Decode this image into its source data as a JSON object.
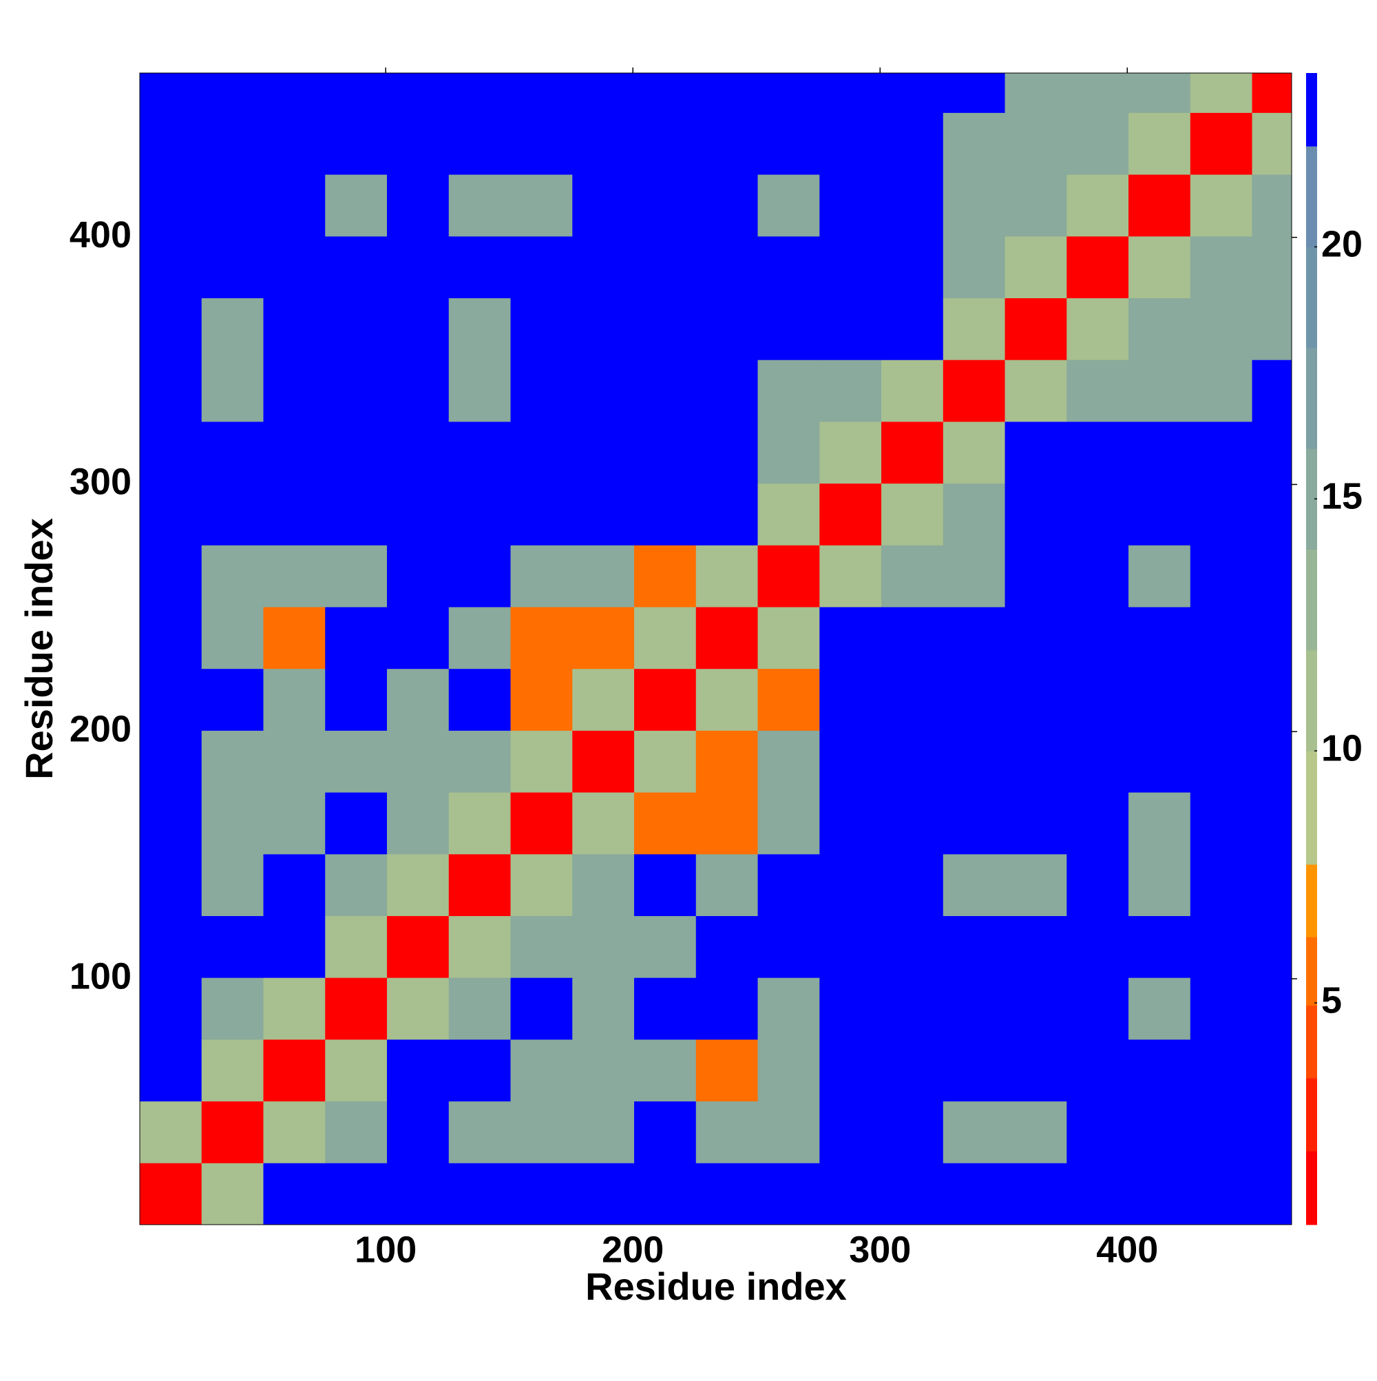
{
  "chart_data": {
    "type": "heatmap",
    "x_label": "Residue index",
    "y_label": "Residue index",
    "xlim": [
      0.5,
      466.5
    ],
    "ylim": [
      0.5,
      466.5
    ],
    "xticks": [
      100,
      200,
      300,
      400
    ],
    "yticks": [
      100,
      200,
      300,
      400
    ],
    "bins": [
      0.5,
      25.5,
      50.5,
      75.5,
      100.5,
      125.5,
      150.5,
      175.5,
      200.5,
      225.5,
      250.5,
      275.5,
      300.5,
      325.5,
      350.5,
      375.5,
      400.5,
      425.5,
      450.5,
      466.5
    ],
    "z": [
      [
        1.5,
        11,
        23,
        23,
        23,
        23,
        23,
        23,
        23,
        23,
        23,
        23,
        23,
        23,
        23,
        23,
        23,
        23,
        23
      ],
      [
        11,
        1.5,
        11,
        14,
        23,
        14,
        14,
        14,
        23,
        14,
        14,
        23,
        23,
        14,
        14,
        23,
        23,
        23,
        23
      ],
      [
        23,
        11,
        1.5,
        11,
        23,
        23,
        14,
        14,
        14,
        6,
        14,
        23,
        23,
        23,
        23,
        23,
        23,
        23,
        23
      ],
      [
        23,
        14,
        11,
        1.5,
        11,
        14,
        23,
        14,
        23,
        23,
        14,
        23,
        23,
        23,
        23,
        23,
        14,
        23,
        23
      ],
      [
        23,
        23,
        23,
        11,
        1.5,
        11,
        14,
        14,
        14,
        23,
        23,
        23,
        23,
        23,
        23,
        23,
        23,
        23,
        23
      ],
      [
        23,
        14,
        23,
        14,
        11,
        1.5,
        11,
        14,
        23,
        14,
        23,
        23,
        23,
        14,
        14,
        23,
        14,
        23,
        23
      ],
      [
        23,
        14,
        14,
        23,
        14,
        11,
        1.5,
        11,
        6,
        6,
        14,
        23,
        23,
        23,
        23,
        23,
        14,
        23,
        23
      ],
      [
        23,
        14,
        14,
        14,
        14,
        14,
        11,
        1.5,
        11,
        6,
        14,
        23,
        23,
        23,
        23,
        23,
        23,
        23,
        23
      ],
      [
        23,
        23,
        14,
        23,
        14,
        23,
        6,
        11,
        1.5,
        11,
        6,
        23,
        23,
        23,
        23,
        23,
        23,
        23,
        23
      ],
      [
        23,
        14,
        6,
        23,
        23,
        14,
        6,
        6,
        11,
        1.5,
        11,
        23,
        23,
        23,
        23,
        23,
        23,
        23,
        23
      ],
      [
        23,
        14,
        14,
        14,
        23,
        23,
        14,
        14,
        6,
        11,
        1.5,
        11,
        14,
        14,
        23,
        23,
        14,
        23,
        23
      ],
      [
        23,
        23,
        23,
        23,
        23,
        23,
        23,
        23,
        23,
        23,
        11,
        1.5,
        11,
        14,
        23,
        23,
        23,
        23,
        23
      ],
      [
        23,
        23,
        23,
        23,
        23,
        23,
        23,
        23,
        23,
        23,
        14,
        11,
        1.5,
        11,
        23,
        23,
        23,
        23,
        23
      ],
      [
        23,
        14,
        23,
        23,
        23,
        14,
        23,
        23,
        23,
        23,
        14,
        14,
        11,
        1.5,
        11,
        14,
        14,
        14,
        23
      ],
      [
        23,
        14,
        23,
        23,
        23,
        14,
        23,
        23,
        23,
        23,
        23,
        23,
        23,
        11,
        1.5,
        11,
        14,
        14,
        14
      ],
      [
        23,
        23,
        23,
        23,
        23,
        23,
        23,
        23,
        23,
        23,
        23,
        23,
        23,
        14,
        11,
        1.5,
        11,
        14,
        14
      ],
      [
        23,
        23,
        23,
        14,
        23,
        14,
        14,
        23,
        23,
        23,
        14,
        23,
        23,
        14,
        14,
        11,
        1.5,
        11,
        14
      ],
      [
        23,
        23,
        23,
        23,
        23,
        23,
        23,
        23,
        23,
        23,
        23,
        23,
        23,
        14,
        14,
        14,
        11,
        1.5,
        11
      ],
      [
        23,
        23,
        23,
        23,
        23,
        23,
        23,
        23,
        23,
        23,
        23,
        23,
        23,
        23,
        14,
        14,
        14,
        11,
        1.5
      ]
    ],
    "colorbar": {
      "zlim": [
        0.6,
        23.45
      ],
      "ticks": [
        5,
        10,
        15,
        20
      ],
      "levels": [
        0.6,
        2.06,
        3.51,
        4.95,
        6.31,
        7.75,
        10,
        12,
        14,
        16,
        18,
        20,
        22,
        23.45
      ],
      "colors": [
        "#ff0000",
        "#ff2200",
        "#ff4a00",
        "#ff6e00",
        "#ff9400",
        "#b7c88a",
        "#a8bf8f",
        "#98b596",
        "#89aa9c",
        "#7c9fa3",
        "#6f95aa",
        "#6a8db0",
        "#0000ff"
      ]
    }
  }
}
